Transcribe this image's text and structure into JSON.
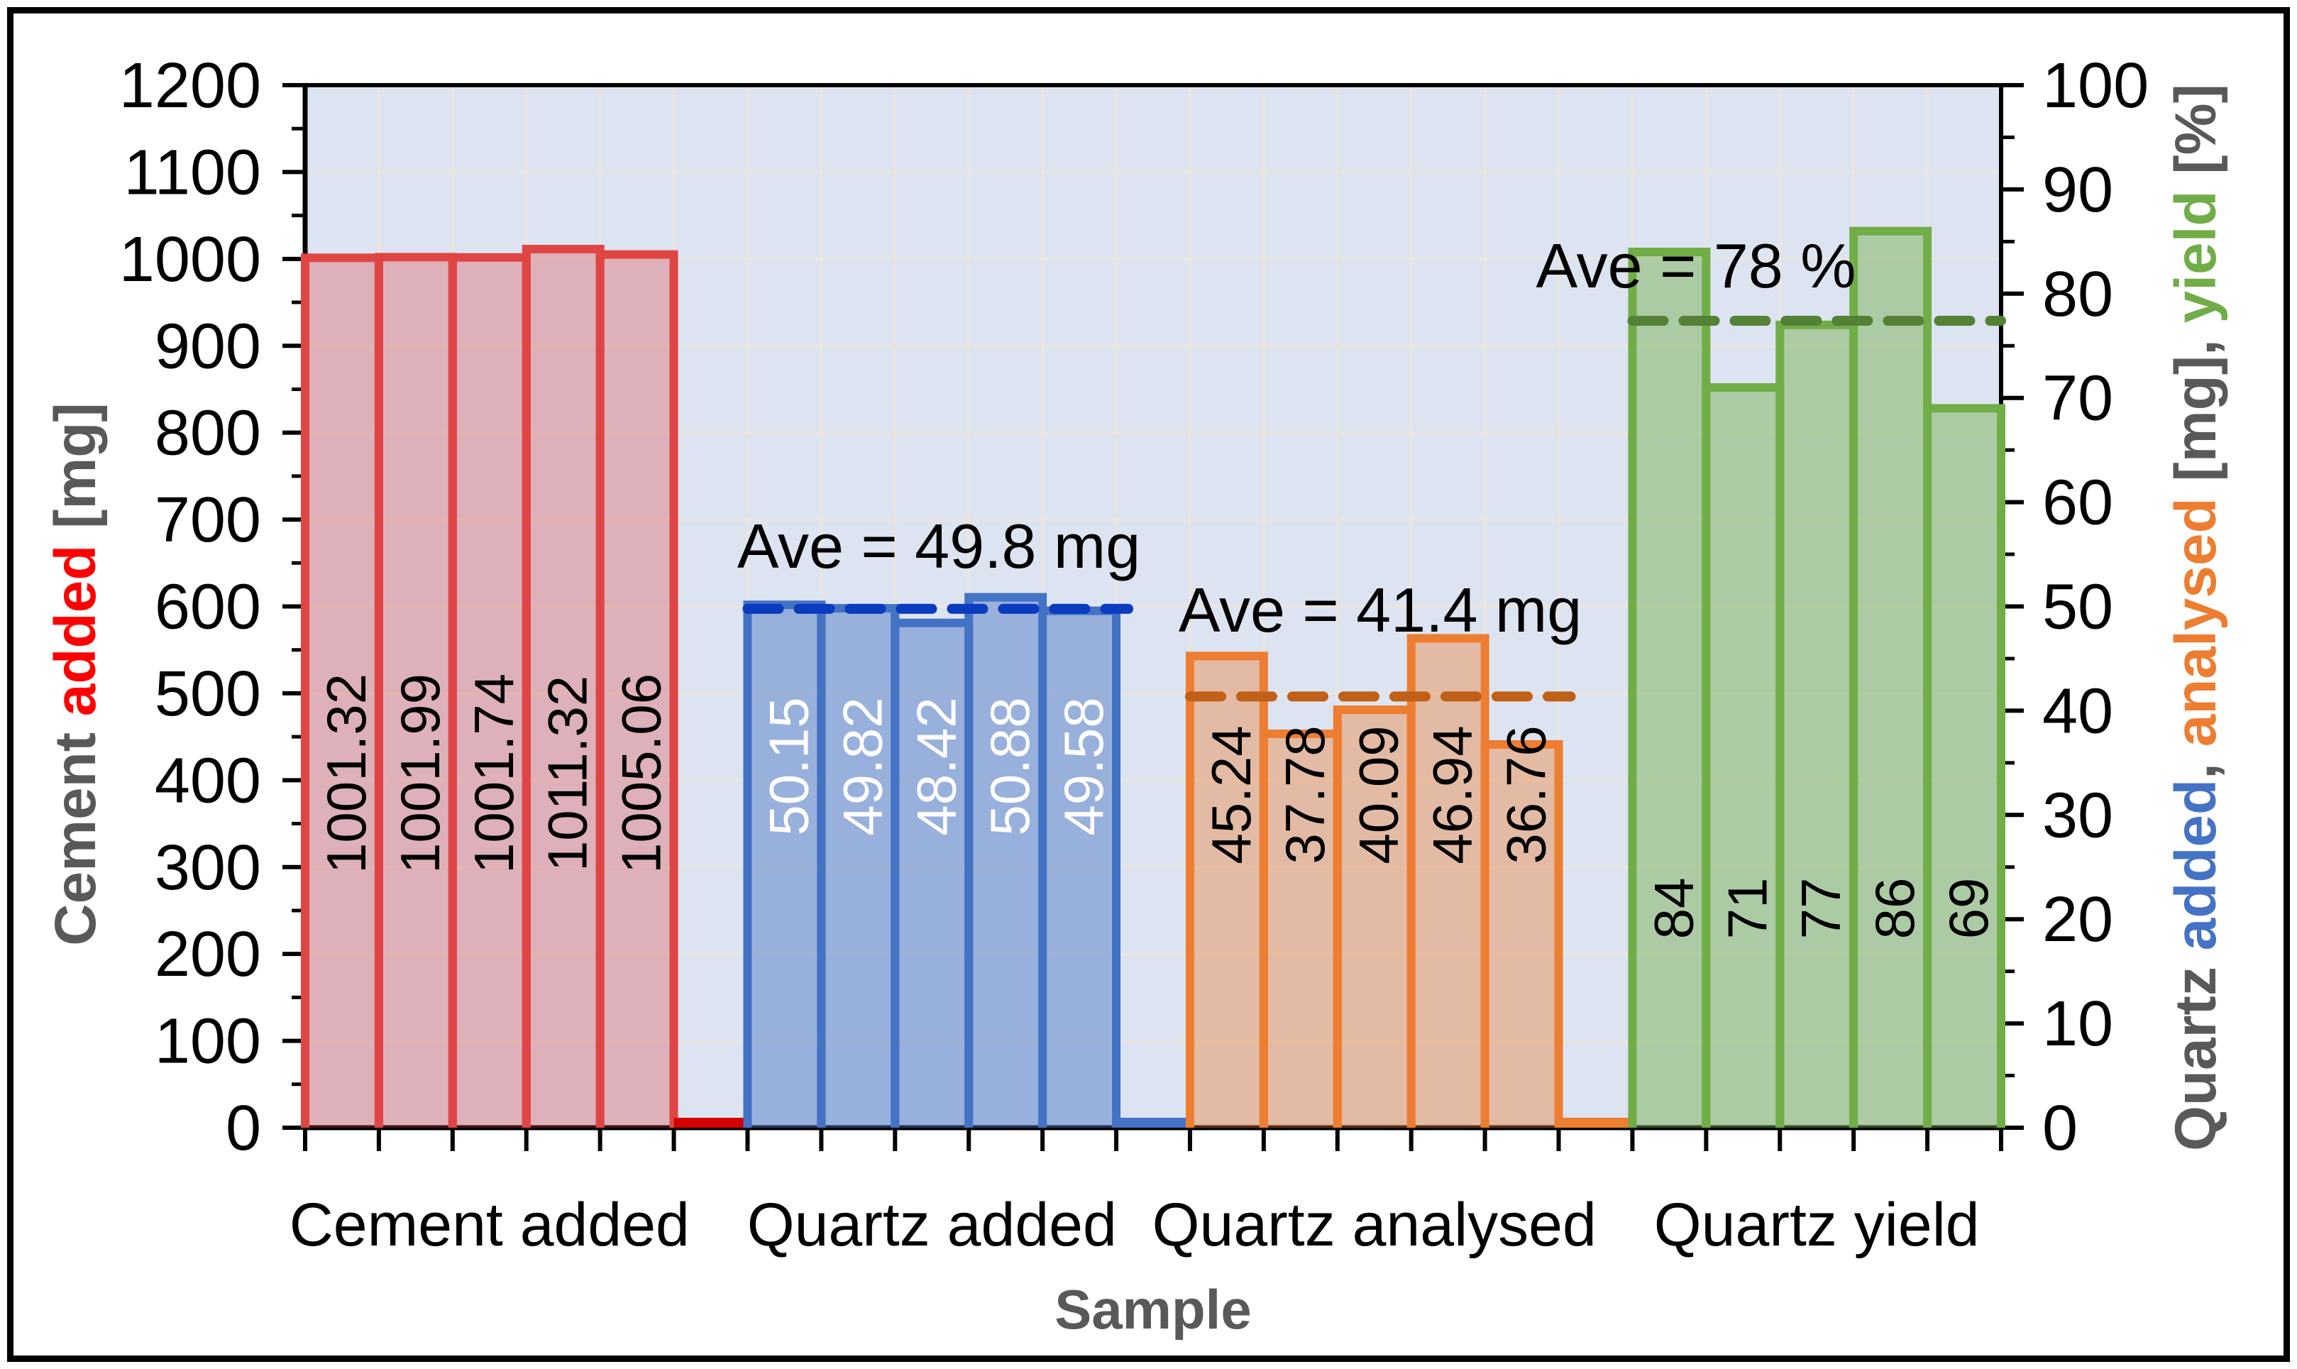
{
  "chart_data": {
    "type": "bar",
    "title": "",
    "xlabel": "Sample",
    "layout_hint": {
      "grid": "on",
      "plot_background": "#DCE3F1",
      "gridline_color": "#E9E6E0",
      "axis_color": "#000000",
      "text_color": "#000000",
      "muted_text_color": "#595959"
    },
    "left_axis": {
      "min": 0,
      "max": 1200,
      "major_step": 100,
      "minor_step": 50,
      "title_segments": [
        {
          "text": "Cement ",
          "color": "#595959"
        },
        {
          "text": "added",
          "color": "#FF0000"
        },
        {
          "text": " [mg]",
          "color": "#595959"
        }
      ]
    },
    "right_axis": {
      "min": 0,
      "max": 100,
      "major_step": 10,
      "minor_step": 5,
      "title_segments": [
        {
          "text": "Quartz ",
          "color": "#595959"
        },
        {
          "text": "added",
          "color": "#4472C4"
        },
        {
          "text": ", ",
          "color": "#595959"
        },
        {
          "text": "analysed",
          "color": "#ED7D31"
        },
        {
          "text": " [mg], ",
          "color": "#595959"
        },
        {
          "text": "yield",
          "color": "#70AD47"
        },
        {
          "text": " [%]",
          "color": "#595959"
        }
      ]
    },
    "x_axis_title": "Sample",
    "groups": [
      {
        "category": "Cement added",
        "axis": "left",
        "border_color": "#E04545",
        "fill_color": "rgba(224,60,58,0.30)",
        "value_label_color": "#000000",
        "zero_line_color": "#D40000",
        "values": [
          1001.32,
          1001.99,
          1001.74,
          1011.32,
          1005.06
        ],
        "value_labels": [
          "1001.32",
          "1001.99",
          "1001.74",
          "1011.32",
          "1005.06"
        ],
        "average_label": ""
      },
      {
        "category": "Quartz added",
        "axis": "right",
        "border_color": "#4472C4",
        "fill_color": "rgba(68,114,196,0.45)",
        "value_label_color": "#FFFFFF",
        "zero_line_color": "#4472C4",
        "avg_line_color": "#0B3BBF",
        "values": [
          50.15,
          49.82,
          48.42,
          50.88,
          49.58
        ],
        "value_labels": [
          "50.15",
          "49.82",
          "48.42",
          "50.88",
          "49.58"
        ],
        "average_label": "Ave = 49.8 mg"
      },
      {
        "category": "Quartz analysed",
        "axis": "right",
        "border_color": "#ED7D31",
        "fill_color": "rgba(237,125,49,0.40)",
        "value_label_color": "#000000",
        "zero_line_color": "#ED7D31",
        "avg_line_color": "#C05F16",
        "values": [
          45.24,
          37.78,
          40.09,
          46.94,
          36.76
        ],
        "value_labels": [
          "45.24",
          "37.78",
          "40.09",
          "46.94",
          "36.76"
        ],
        "average_label": "Ave = 41.4 mg"
      },
      {
        "category": "Quartz yield",
        "axis": "right",
        "border_color": "#70AD47",
        "fill_color": "rgba(112,173,71,0.45)",
        "value_label_color": "#000000",
        "avg_line_color": "#538135",
        "avg_line_to_axis": true,
        "values": [
          84,
          71,
          77,
          86,
          69
        ],
        "value_labels": [
          "84",
          "71",
          "77",
          "86",
          "69"
        ],
        "average_label": "Ave = 78 %"
      }
    ]
  }
}
